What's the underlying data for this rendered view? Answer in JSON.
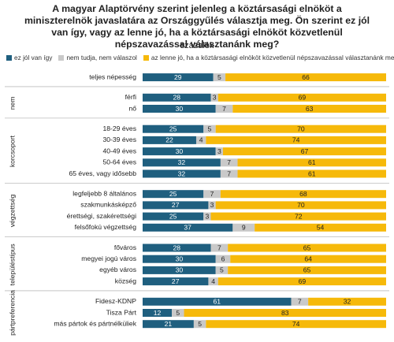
{
  "chart_data": {
    "type": "stacked-bar-horizontal",
    "title": "A magyar Alaptörvény szerint jelenleg a köztársasági elnököt a miniszterelnök javaslatára az Országgyűlés választja meg. Ön szerint ez jól van így, vagy az lenne jó, ha a köztársasági elnököt közvetlenül népszavazással választanánk meg?",
    "subtitle": "százalék",
    "xlim": [
      0,
      100
    ],
    "groups": [
      {
        "name": null,
        "categories": [
          "teljes népesség"
        ]
      },
      {
        "name": "nem",
        "categories": [
          "férfi",
          "nő"
        ]
      },
      {
        "name": "korcsoport",
        "categories": [
          "18-29 éves",
          "30-39 éves",
          "40-49 éves",
          "50-64 éves",
          "65 éves, vagy idősebb"
        ]
      },
      {
        "name": "végzettség",
        "categories": [
          "legfeljebb 8 általános",
          "szakmunkásképző",
          "érettségi, szakérettségi",
          "felsőfokú végzettség"
        ]
      },
      {
        "name": "településtípus",
        "categories": [
          "főváros",
          "megyei jogú város",
          "egyéb város",
          "község"
        ]
      },
      {
        "name": "pártpreferencia",
        "categories": [
          "Fidesz-KDNP",
          "Tisza Párt",
          "más pártok és pártnélküliek"
        ]
      }
    ],
    "series": [
      {
        "name": "ez jól van így",
        "color": "#1f5f7f",
        "values": [
          29,
          28,
          30,
          25,
          22,
          30,
          32,
          32,
          25,
          27,
          25,
          37,
          28,
          30,
          30,
          27,
          61,
          12,
          21
        ]
      },
      {
        "name": "nem tudja, nem válaszol",
        "color": "#c9c9c9",
        "values": [
          5,
          3,
          7,
          5,
          4,
          3,
          7,
          7,
          7,
          3,
          3,
          9,
          7,
          6,
          5,
          4,
          7,
          5,
          5
        ]
      },
      {
        "name": "az lenne jó, ha a köztársasági elnököt közvetlenül népszavazással választanánk meg",
        "color": "#f6b90a",
        "values": [
          66,
          69,
          63,
          70,
          74,
          67,
          61,
          61,
          68,
          70,
          72,
          54,
          65,
          64,
          65,
          69,
          32,
          83,
          74
        ]
      }
    ]
  }
}
